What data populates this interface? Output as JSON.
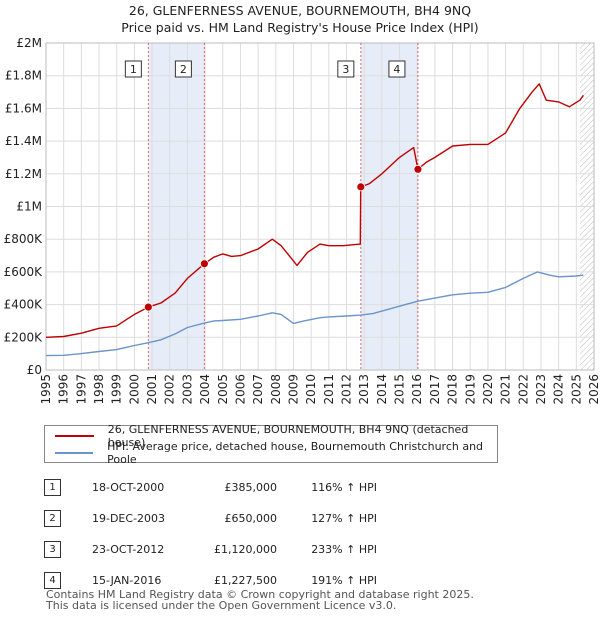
{
  "title_line1": "26, GLENFERNESS AVENUE, BOURNEMOUTH, BH4 9NQ",
  "title_line2": "Price paid vs. HM Land Registry's House Price Index (HPI)",
  "colors": {
    "property": "#c00000",
    "hpi": "#6a94cc",
    "marker_band": "#dde6f5"
  },
  "chart_data": {
    "type": "line",
    "xlim": [
      1995,
      2026
    ],
    "ylim": [
      0,
      2000000
    ],
    "yticks": [
      {
        "value": 0,
        "label": "£0"
      },
      {
        "value": 200000,
        "label": "£200K"
      },
      {
        "value": 400000,
        "label": "£400K"
      },
      {
        "value": 600000,
        "label": "£600K"
      },
      {
        "value": 800000,
        "label": "£800K"
      },
      {
        "value": 1000000,
        "label": "£1M"
      },
      {
        "value": 1200000,
        "label": "£1.2M"
      },
      {
        "value": 1400000,
        "label": "£1.4M"
      },
      {
        "value": 1600000,
        "label": "£1.6M"
      },
      {
        "value": 1800000,
        "label": "£1.8M"
      },
      {
        "value": 2000000,
        "label": "£2M"
      }
    ],
    "xticks": [
      "1995",
      "1996",
      "1997",
      "1998",
      "1999",
      "2000",
      "2001",
      "2002",
      "2003",
      "2004",
      "2005",
      "2006",
      "2007",
      "2008",
      "2009",
      "2010",
      "2011",
      "2012",
      "2013",
      "2014",
      "2015",
      "2016",
      "2017",
      "2018",
      "2019",
      "2020",
      "2021",
      "2022",
      "2023",
      "2024",
      "2025",
      "2026"
    ],
    "grid": true,
    "series": [
      {
        "name": "26, GLENFERNESS AVENUE, BOURNEMOUTH, BH4 9NQ (detached house)",
        "points": [
          [
            1995,
            200000
          ],
          [
            1996,
            205000
          ],
          [
            1997,
            225000
          ],
          [
            1998,
            255000
          ],
          [
            1999,
            270000
          ],
          [
            2000,
            340000
          ],
          [
            2000.79,
            385000
          ],
          [
            2001.5,
            410000
          ],
          [
            2002.3,
            470000
          ],
          [
            2003,
            560000
          ],
          [
            2003.96,
            650000
          ],
          [
            2004.5,
            690000
          ],
          [
            2005,
            710000
          ],
          [
            2005.5,
            695000
          ],
          [
            2006,
            700000
          ],
          [
            2007,
            740000
          ],
          [
            2007.8,
            800000
          ],
          [
            2008.3,
            760000
          ],
          [
            2008.9,
            680000
          ],
          [
            2009.2,
            640000
          ],
          [
            2009.8,
            720000
          ],
          [
            2010.5,
            770000
          ],
          [
            2011,
            760000
          ],
          [
            2011.8,
            760000
          ],
          [
            2012.78,
            770000
          ],
          [
            2012.8,
            1120000
          ],
          [
            2013.3,
            1140000
          ],
          [
            2014,
            1200000
          ],
          [
            2015,
            1300000
          ],
          [
            2015.8,
            1360000
          ],
          [
            2016.04,
            1227500
          ],
          [
            2016.5,
            1270000
          ],
          [
            2017,
            1300000
          ],
          [
            2018,
            1370000
          ],
          [
            2019,
            1380000
          ],
          [
            2020,
            1380000
          ],
          [
            2021,
            1450000
          ],
          [
            2021.8,
            1600000
          ],
          [
            2022.5,
            1700000
          ],
          [
            2022.9,
            1750000
          ],
          [
            2023.3,
            1650000
          ],
          [
            2024,
            1640000
          ],
          [
            2024.6,
            1610000
          ],
          [
            2025.2,
            1650000
          ],
          [
            2025.4,
            1680000
          ]
        ]
      },
      {
        "name": "HPI: Average price, detached house, Bournemouth Christchurch and Poole",
        "points": [
          [
            1995,
            88000
          ],
          [
            1996,
            90000
          ],
          [
            1997,
            100000
          ],
          [
            1998,
            113000
          ],
          [
            1999,
            125000
          ],
          [
            2000,
            150000
          ],
          [
            2000.79,
            167000
          ],
          [
            2001.5,
            185000
          ],
          [
            2002.3,
            220000
          ],
          [
            2003,
            260000
          ],
          [
            2003.96,
            287000
          ],
          [
            2004.5,
            300000
          ],
          [
            2005,
            303000
          ],
          [
            2006,
            310000
          ],
          [
            2007,
            330000
          ],
          [
            2007.8,
            350000
          ],
          [
            2008.3,
            340000
          ],
          [
            2009,
            285000
          ],
          [
            2009.6,
            300000
          ],
          [
            2010.5,
            320000
          ],
          [
            2011,
            325000
          ],
          [
            2012,
            330000
          ],
          [
            2012.8,
            336000
          ],
          [
            2013.5,
            345000
          ],
          [
            2014,
            360000
          ],
          [
            2015,
            390000
          ],
          [
            2016.04,
            421000
          ],
          [
            2017,
            440000
          ],
          [
            2018,
            460000
          ],
          [
            2019,
            470000
          ],
          [
            2020,
            475000
          ],
          [
            2021,
            505000
          ],
          [
            2022,
            560000
          ],
          [
            2022.8,
            600000
          ],
          [
            2023.5,
            580000
          ],
          [
            2024,
            570000
          ],
          [
            2025,
            575000
          ],
          [
            2025.4,
            580000
          ]
        ]
      }
    ],
    "sales": [
      {
        "num": "1",
        "date": "18-OCT-2000",
        "x": 2000.79,
        "price_value": 385000,
        "price": "£385,000",
        "hpi": "116% ↑ HPI"
      },
      {
        "num": "2",
        "date": "19-DEC-2003",
        "x": 2003.96,
        "price_value": 650000,
        "price": "£650,000",
        "hpi": "127% ↑ HPI"
      },
      {
        "num": "3",
        "date": "23-OCT-2012",
        "x": 2012.81,
        "price_value": 1120000,
        "price": "£1,120,000",
        "hpi": "233% ↑ HPI"
      },
      {
        "num": "4",
        "date": "15-JAN-2016",
        "x": 2016.04,
        "price_value": 1227500,
        "price": "£1,227,500",
        "hpi": "191% ↑ HPI"
      }
    ],
    "hatch_from": 2025.2
  },
  "legend": {
    "property_label": "26, GLENFERNESS AVENUE, BOURNEMOUTH, BH4 9NQ (detached house)",
    "hpi_label": "HPI: Average price, detached house, Bournemouth Christchurch and Poole"
  },
  "footer": {
    "line1": "Contains HM Land Registry data © Crown copyright and database right 2025.",
    "line2": "This data is licensed under the Open Government Licence v3.0."
  }
}
